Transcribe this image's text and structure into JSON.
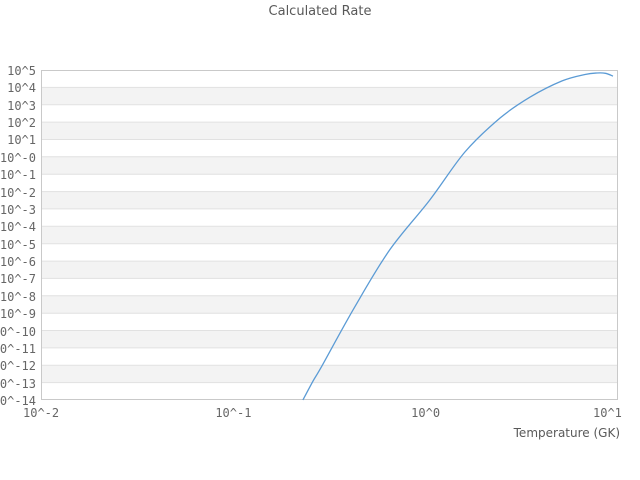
{
  "title": "Calculated Rate",
  "colors": {
    "line": "#5b9bd5",
    "band": "#f3f3f3",
    "grid": "#e1e1e1",
    "frame": "#c9c9c9",
    "title_text": "#595959",
    "tick_text": "#666666"
  },
  "axes": {
    "x": {
      "label": "Temperature (GK)",
      "scale": "log",
      "log_min": -2,
      "log_max": 1,
      "ticks": [
        {
          "label": "10^-2",
          "log": -2
        },
        {
          "label": "10^-1",
          "log": -1
        },
        {
          "label": "10^0",
          "log": 0
        },
        {
          "label": "10^1",
          "log": 1
        }
      ]
    },
    "y": {
      "label": "",
      "scale": "log",
      "log_min": -14,
      "log_max": 5,
      "ticks": [
        {
          "label": "10^5",
          "log": 5
        },
        {
          "label": "10^4",
          "log": 4
        },
        {
          "label": "10^3",
          "log": 3
        },
        {
          "label": "10^2",
          "log": 2
        },
        {
          "label": "10^1",
          "log": 1
        },
        {
          "label": "10^-0",
          "log": 0
        },
        {
          "label": "10^-1",
          "log": -1
        },
        {
          "label": "10^-2",
          "log": -2
        },
        {
          "label": "10^-3",
          "log": -3
        },
        {
          "label": "10^-4",
          "log": -4
        },
        {
          "label": "10^-5",
          "log": -5
        },
        {
          "label": "10^-6",
          "log": -6
        },
        {
          "label": "10^-7",
          "log": -7
        },
        {
          "label": "10^-8",
          "log": -8
        },
        {
          "label": "10^-9",
          "log": -9
        },
        {
          "label": "10^-10",
          "log": -10
        },
        {
          "label": "10^-11",
          "log": -11
        },
        {
          "label": "10^-12",
          "log": -12
        },
        {
          "label": "10^-13",
          "log": -13
        },
        {
          "label": "10^-14",
          "log": -14
        }
      ]
    }
  },
  "chart_data": {
    "type": "line",
    "title": "Calculated Rate",
    "xlabel": "Temperature (GK)",
    "ylabel": "",
    "x_scale": "log",
    "y_scale": "log",
    "xlim": [
      0.01,
      10
    ],
    "ylim_log10": [
      -14,
      5
    ],
    "grid": "horizontal-only",
    "legend": "none",
    "series": [
      {
        "name": "calculated-rate",
        "color": "#5b9bd5",
        "points": [
          {
            "T": 0.23,
            "log10_rate": -14.0
          },
          {
            "T": 0.26,
            "log10_rate": -12.9
          },
          {
            "T": 0.29,
            "log10_rate": -12.0
          },
          {
            "T": 0.43,
            "log10_rate": -8.6
          },
          {
            "T": 0.65,
            "log10_rate": -5.36
          },
          {
            "T": 1.05,
            "log10_rate": -2.49
          },
          {
            "T": 1.6,
            "log10_rate": 0.28
          },
          {
            "T": 2.44,
            "log10_rate": 2.24
          },
          {
            "T": 3.49,
            "log10_rate": 3.44
          },
          {
            "T": 5.12,
            "log10_rate": 4.37
          },
          {
            "T": 6.74,
            "log10_rate": 4.74
          },
          {
            "T": 7.78,
            "log10_rate": 4.83
          },
          {
            "T": 8.6,
            "log10_rate": 4.81
          },
          {
            "T": 9.42,
            "log10_rate": 4.65
          }
        ]
      }
    ]
  }
}
